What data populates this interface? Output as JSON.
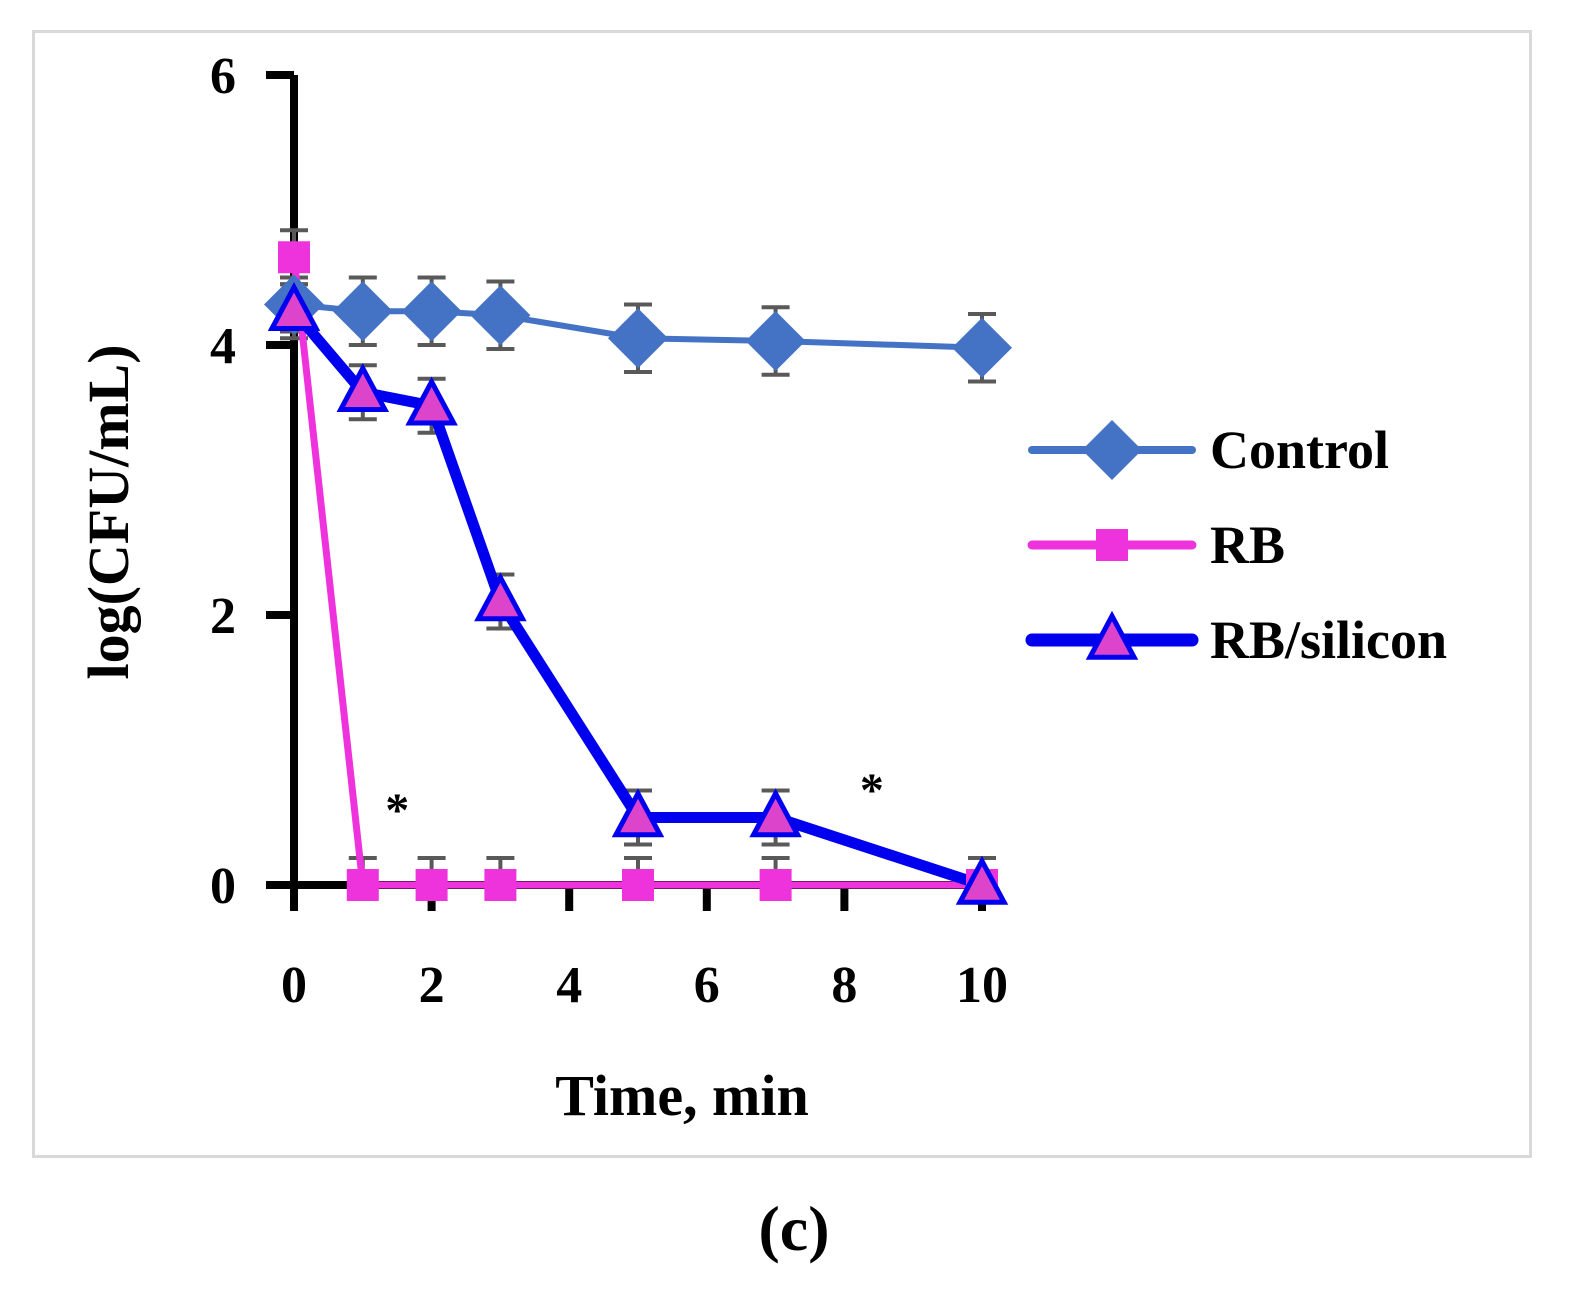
{
  "chart_data": {
    "type": "line",
    "title": "",
    "xlabel": "Time, min",
    "ylabel": "log(CFU/mL)",
    "xlim": [
      0,
      10
    ],
    "ylim": [
      0,
      6
    ],
    "xticks": [
      0,
      2,
      4,
      6,
      8,
      10
    ],
    "yticks": [
      0,
      2,
      4,
      6
    ],
    "legend_position": "right",
    "series": [
      {
        "name": "Control",
        "color": "#4472c4",
        "marker": "diamond",
        "x": [
          0,
          1,
          2,
          3,
          5,
          7,
          10
        ],
        "y": [
          4.3,
          4.25,
          4.25,
          4.22,
          4.05,
          4.03,
          3.98
        ],
        "err": [
          0.2,
          0.25,
          0.25,
          0.25,
          0.25,
          0.25,
          0.25
        ]
      },
      {
        "name": "RB",
        "color": "#ee33dd",
        "marker": "square",
        "x": [
          0,
          1,
          2,
          3,
          5,
          7,
          10
        ],
        "y": [
          4.65,
          0,
          0,
          0,
          0,
          0,
          0
        ],
        "err": [
          0.2,
          0.2,
          0.2,
          0.2,
          0.2,
          0.2,
          0.2
        ]
      },
      {
        "name": "RB/silicon",
        "color": "#0000ee",
        "marker": "triangle",
        "marker_fill": "#dd44cc",
        "x": [
          0,
          1,
          2,
          3,
          5,
          7,
          10
        ],
        "y": [
          4.25,
          3.65,
          3.55,
          2.1,
          0.5,
          0.5,
          0
        ],
        "err": [
          0.2,
          0.2,
          0.2,
          0.2,
          0.2,
          0.2,
          0.2
        ]
      }
    ],
    "annotations": [
      {
        "text": "*",
        "x": 1.5,
        "y": 0.6
      },
      {
        "text": "*",
        "x": 8.4,
        "y": 0.75
      }
    ]
  },
  "caption": "(c)"
}
